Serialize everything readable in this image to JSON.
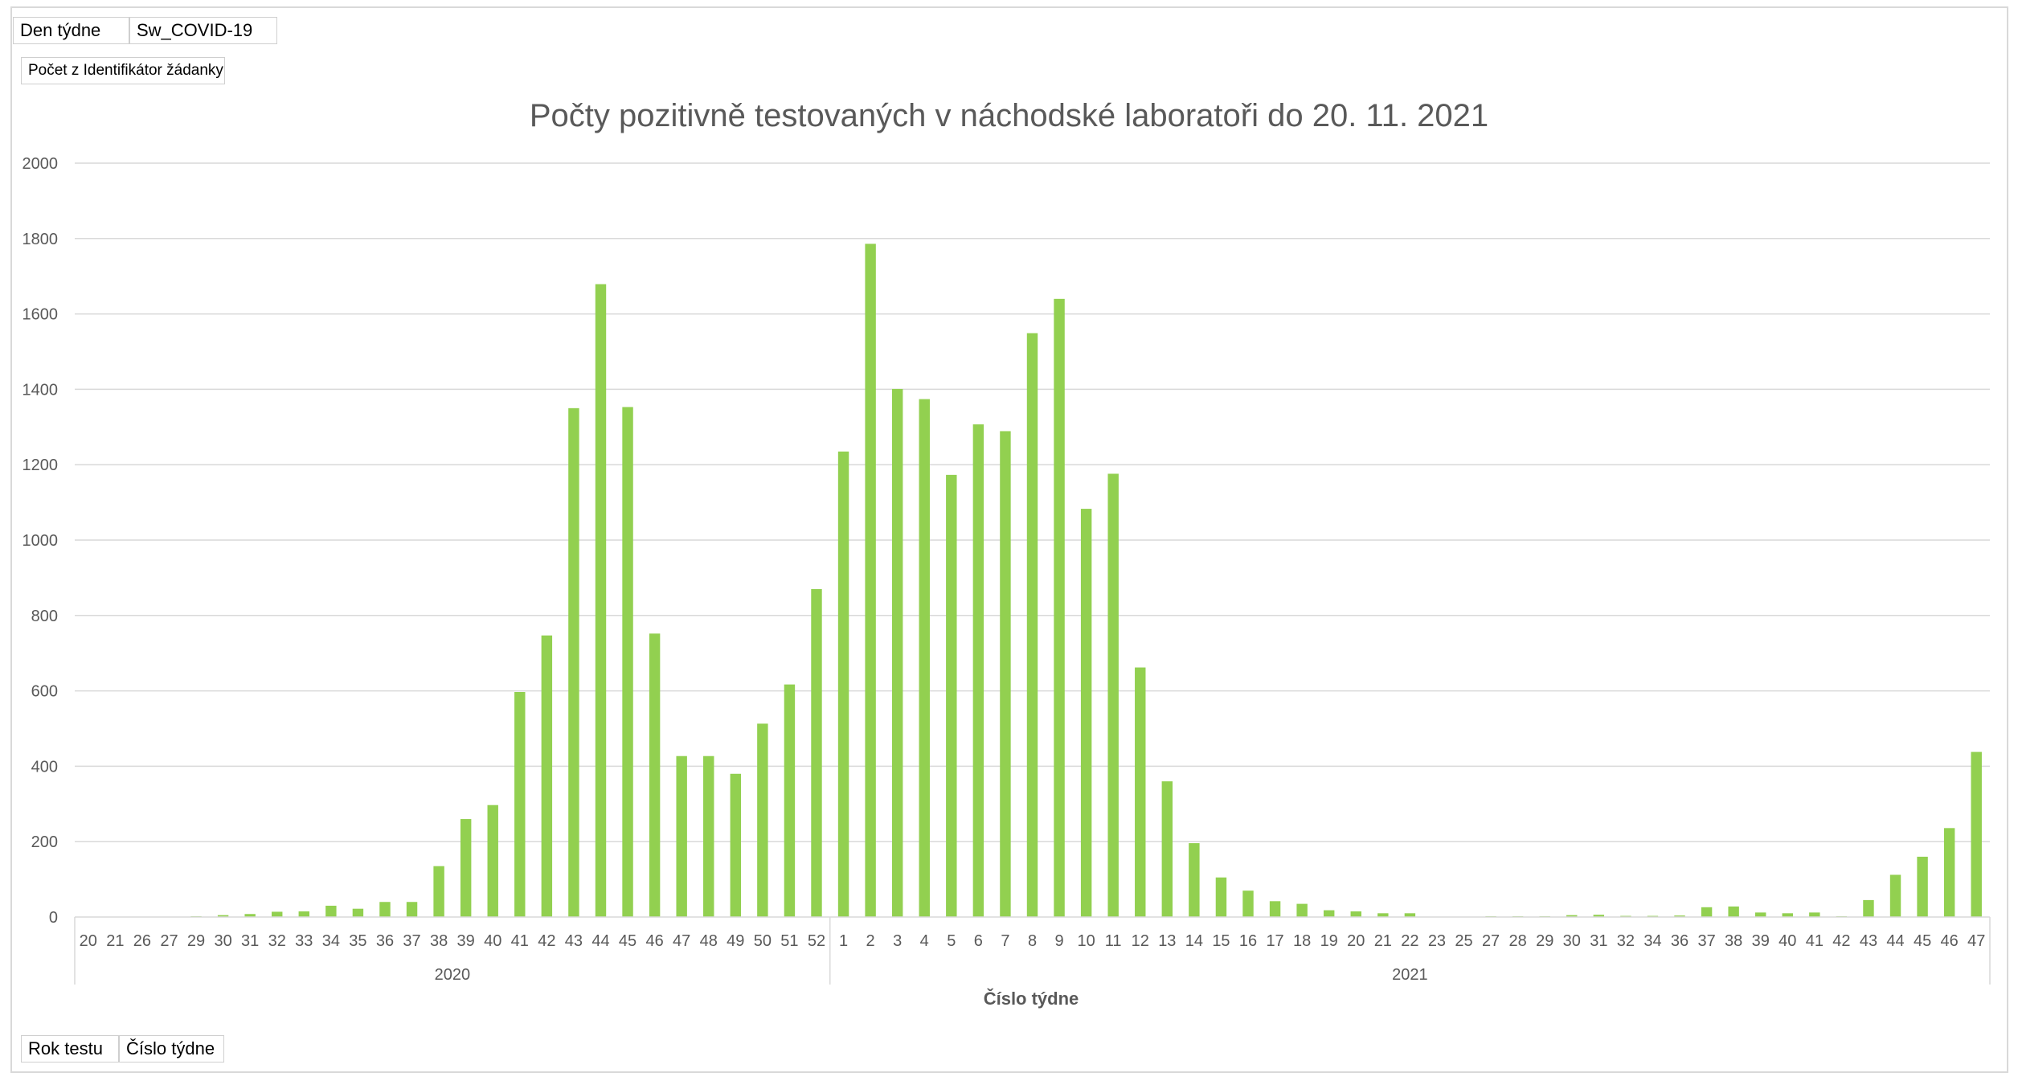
{
  "pivot": {
    "filter_field": "Den týdne",
    "series_field": "Sw_COVID-19",
    "values_field": "Počet z Identifikátor žádanky",
    "row_field_1": "Rok testu",
    "row_field_2": "Číslo týdne"
  },
  "chart_data": {
    "type": "bar",
    "title": "Počty pozitivně testovaných v náchodské laboratoři do 20. 11. 2021",
    "xlabel": "Číslo týdne",
    "ylabel": "",
    "ylim": [
      0,
      2000
    ],
    "yticks": [
      0,
      200,
      400,
      600,
      800,
      1000,
      1200,
      1400,
      1600,
      1800,
      2000
    ],
    "grid": true,
    "legend": "none",
    "bar_color": "#92d050",
    "groups": [
      {
        "name": "2020",
        "categories": [
          "20",
          "21",
          "26",
          "27",
          "29",
          "30",
          "31",
          "32",
          "33",
          "34",
          "35",
          "36",
          "37",
          "38",
          "39",
          "40",
          "41",
          "42",
          "43",
          "44",
          "45",
          "46",
          "47",
          "48",
          "49",
          "50",
          "51",
          "52"
        ],
        "values": [
          0,
          0,
          0,
          1,
          2,
          5,
          8,
          14,
          15,
          30,
          22,
          40,
          40,
          135,
          260,
          297,
          597,
          747,
          1350,
          1679,
          1353,
          752,
          427,
          427,
          380,
          513,
          617,
          870
        ]
      },
      {
        "name": "2021",
        "categories": [
          "1",
          "2",
          "3",
          "4",
          "5",
          "6",
          "7",
          "8",
          "9",
          "10",
          "11",
          "12",
          "13",
          "14",
          "15",
          "16",
          "17",
          "18",
          "19",
          "20",
          "21",
          "22",
          "23",
          "25",
          "27",
          "28",
          "29",
          "30",
          "31",
          "32",
          "34",
          "36",
          "37",
          "38",
          "39",
          "40",
          "41",
          "42",
          "43",
          "44",
          "45",
          "46",
          "47"
        ],
        "values": [
          1235,
          1786,
          1401,
          1374,
          1173,
          1307,
          1289,
          1549,
          1640,
          1083,
          1176,
          662,
          360,
          196,
          105,
          70,
          42,
          35,
          18,
          15,
          10,
          10,
          0,
          0,
          2,
          2,
          2,
          5,
          6,
          3,
          3,
          4,
          26,
          28,
          12,
          10,
          12,
          2,
          45,
          112,
          160,
          236,
          438
        ]
      }
    ]
  }
}
